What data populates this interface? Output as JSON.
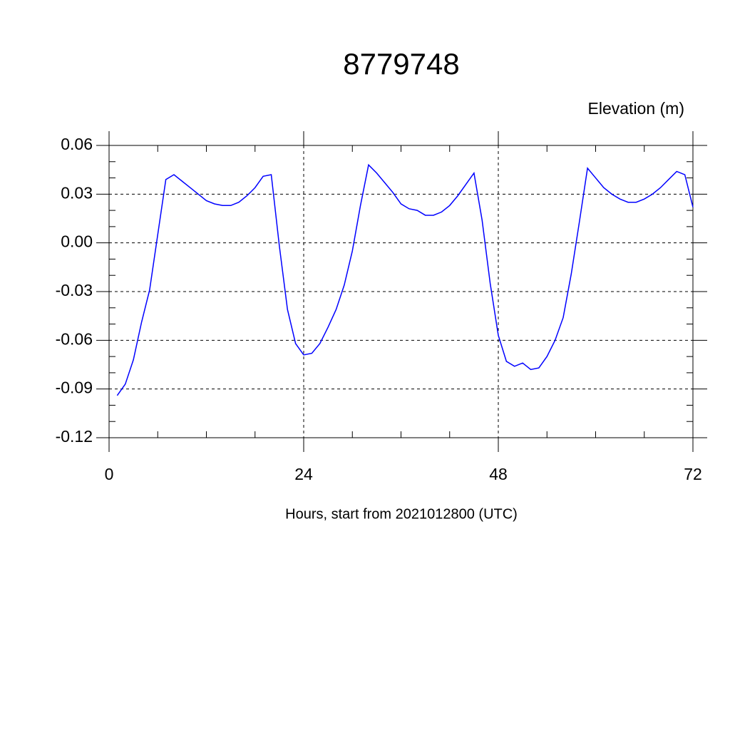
{
  "chart_data": {
    "type": "line",
    "title": "8779748",
    "subtitle": "Elevation (m)",
    "x_label": "Hours, start from 2021012800 (UTC)",
    "x": [
      1,
      2,
      3,
      4,
      5,
      6,
      7,
      8,
      9,
      10,
      11,
      12,
      13,
      14,
      15,
      16,
      17,
      18,
      19,
      20,
      21,
      22,
      23,
      24,
      25,
      26,
      27,
      28,
      29,
      30,
      31,
      32,
      33,
      34,
      35,
      36,
      37,
      38,
      39,
      40,
      41,
      42,
      43,
      44,
      45,
      46,
      47,
      48,
      49,
      50,
      51,
      52,
      53,
      54,
      55,
      56,
      57,
      58,
      59,
      60,
      61,
      62,
      63,
      64,
      65,
      66,
      67,
      68,
      69,
      70,
      71,
      72
    ],
    "series": [
      {
        "color": "#0000ff",
        "values": [
          -0.094,
          -0.087,
          -0.072,
          -0.049,
          -0.029,
          0.005,
          0.039,
          0.042,
          0.038,
          0.034,
          0.03,
          0.026,
          0.024,
          0.023,
          0.023,
          0.025,
          0.029,
          0.034,
          0.041,
          0.042,
          -0.002,
          -0.041,
          -0.062,
          -0.069,
          -0.068,
          -0.062,
          -0.052,
          -0.041,
          -0.026,
          -0.005,
          0.023,
          0.048,
          0.043,
          0.037,
          0.031,
          0.024,
          0.021,
          0.02,
          0.017,
          0.017,
          0.019,
          0.023,
          0.029,
          0.036,
          0.043,
          0.014,
          -0.025,
          -0.057,
          -0.073,
          -0.076,
          -0.074,
          -0.078,
          -0.077,
          -0.07,
          -0.06,
          -0.046,
          -0.019,
          0.013,
          0.046,
          0.04,
          0.034,
          0.03,
          0.027,
          0.025,
          0.025,
          0.027,
          0.03,
          0.034,
          0.039,
          0.044,
          0.042,
          0.022
        ]
      }
    ],
    "xlim": [
      0,
      72
    ],
    "xticks": [
      0,
      24,
      48,
      72
    ],
    "xminorticks": [
      6,
      12,
      18,
      30,
      36,
      42,
      54,
      60,
      66
    ],
    "ylim": [
      -0.12,
      0.06
    ],
    "yticks": [
      0.06,
      0.03,
      {
        "value": 0,
        "label": "0.00"
      },
      -0.03,
      -0.06,
      -0.09,
      -0.12
    ],
    "yminorticks": [
      0.05,
      0.04,
      0.02,
      0.01,
      -0.01,
      -0.02,
      -0.04,
      -0.05,
      -0.07,
      -0.08,
      -0.1,
      -0.11
    ],
    "grid": true
  }
}
